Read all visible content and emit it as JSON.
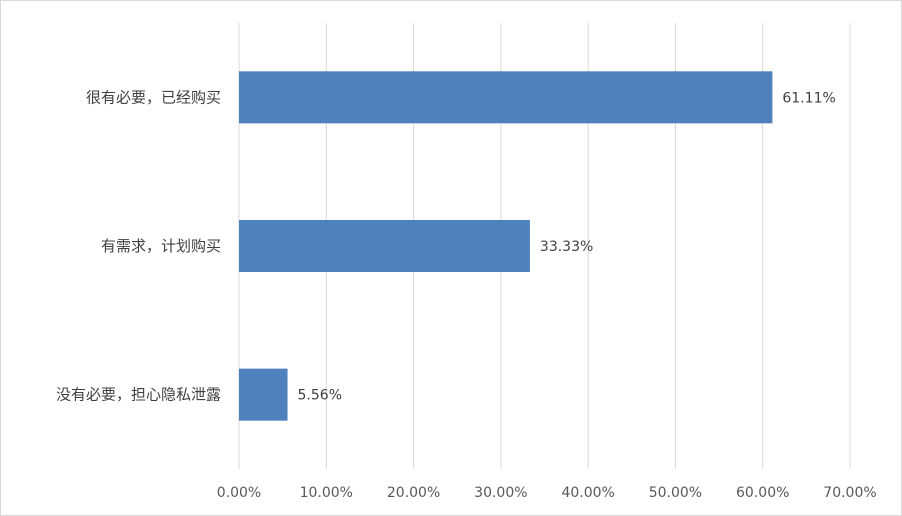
{
  "chart_data": {
    "type": "bar",
    "orientation": "horizontal",
    "categories": [
      "很有必要，已经购买",
      "有需求，计划购买",
      "没有必要，担心隐私泄露"
    ],
    "values": [
      61.11,
      33.33,
      5.56
    ],
    "data_labels": [
      "61.11%",
      "33.33%",
      "5.56%"
    ],
    "xlim": [
      0,
      70
    ],
    "x_ticks": [
      0,
      10,
      20,
      30,
      40,
      50,
      60,
      70
    ],
    "x_tick_labels": [
      "0.00%",
      "10.00%",
      "20.00%",
      "30.00%",
      "40.00%",
      "50.00%",
      "60.00%",
      "70.00%"
    ],
    "grid": "vertical",
    "bar_color": "#4f81bd",
    "grid_color": "#d9d9d9",
    "legend": "none"
  }
}
